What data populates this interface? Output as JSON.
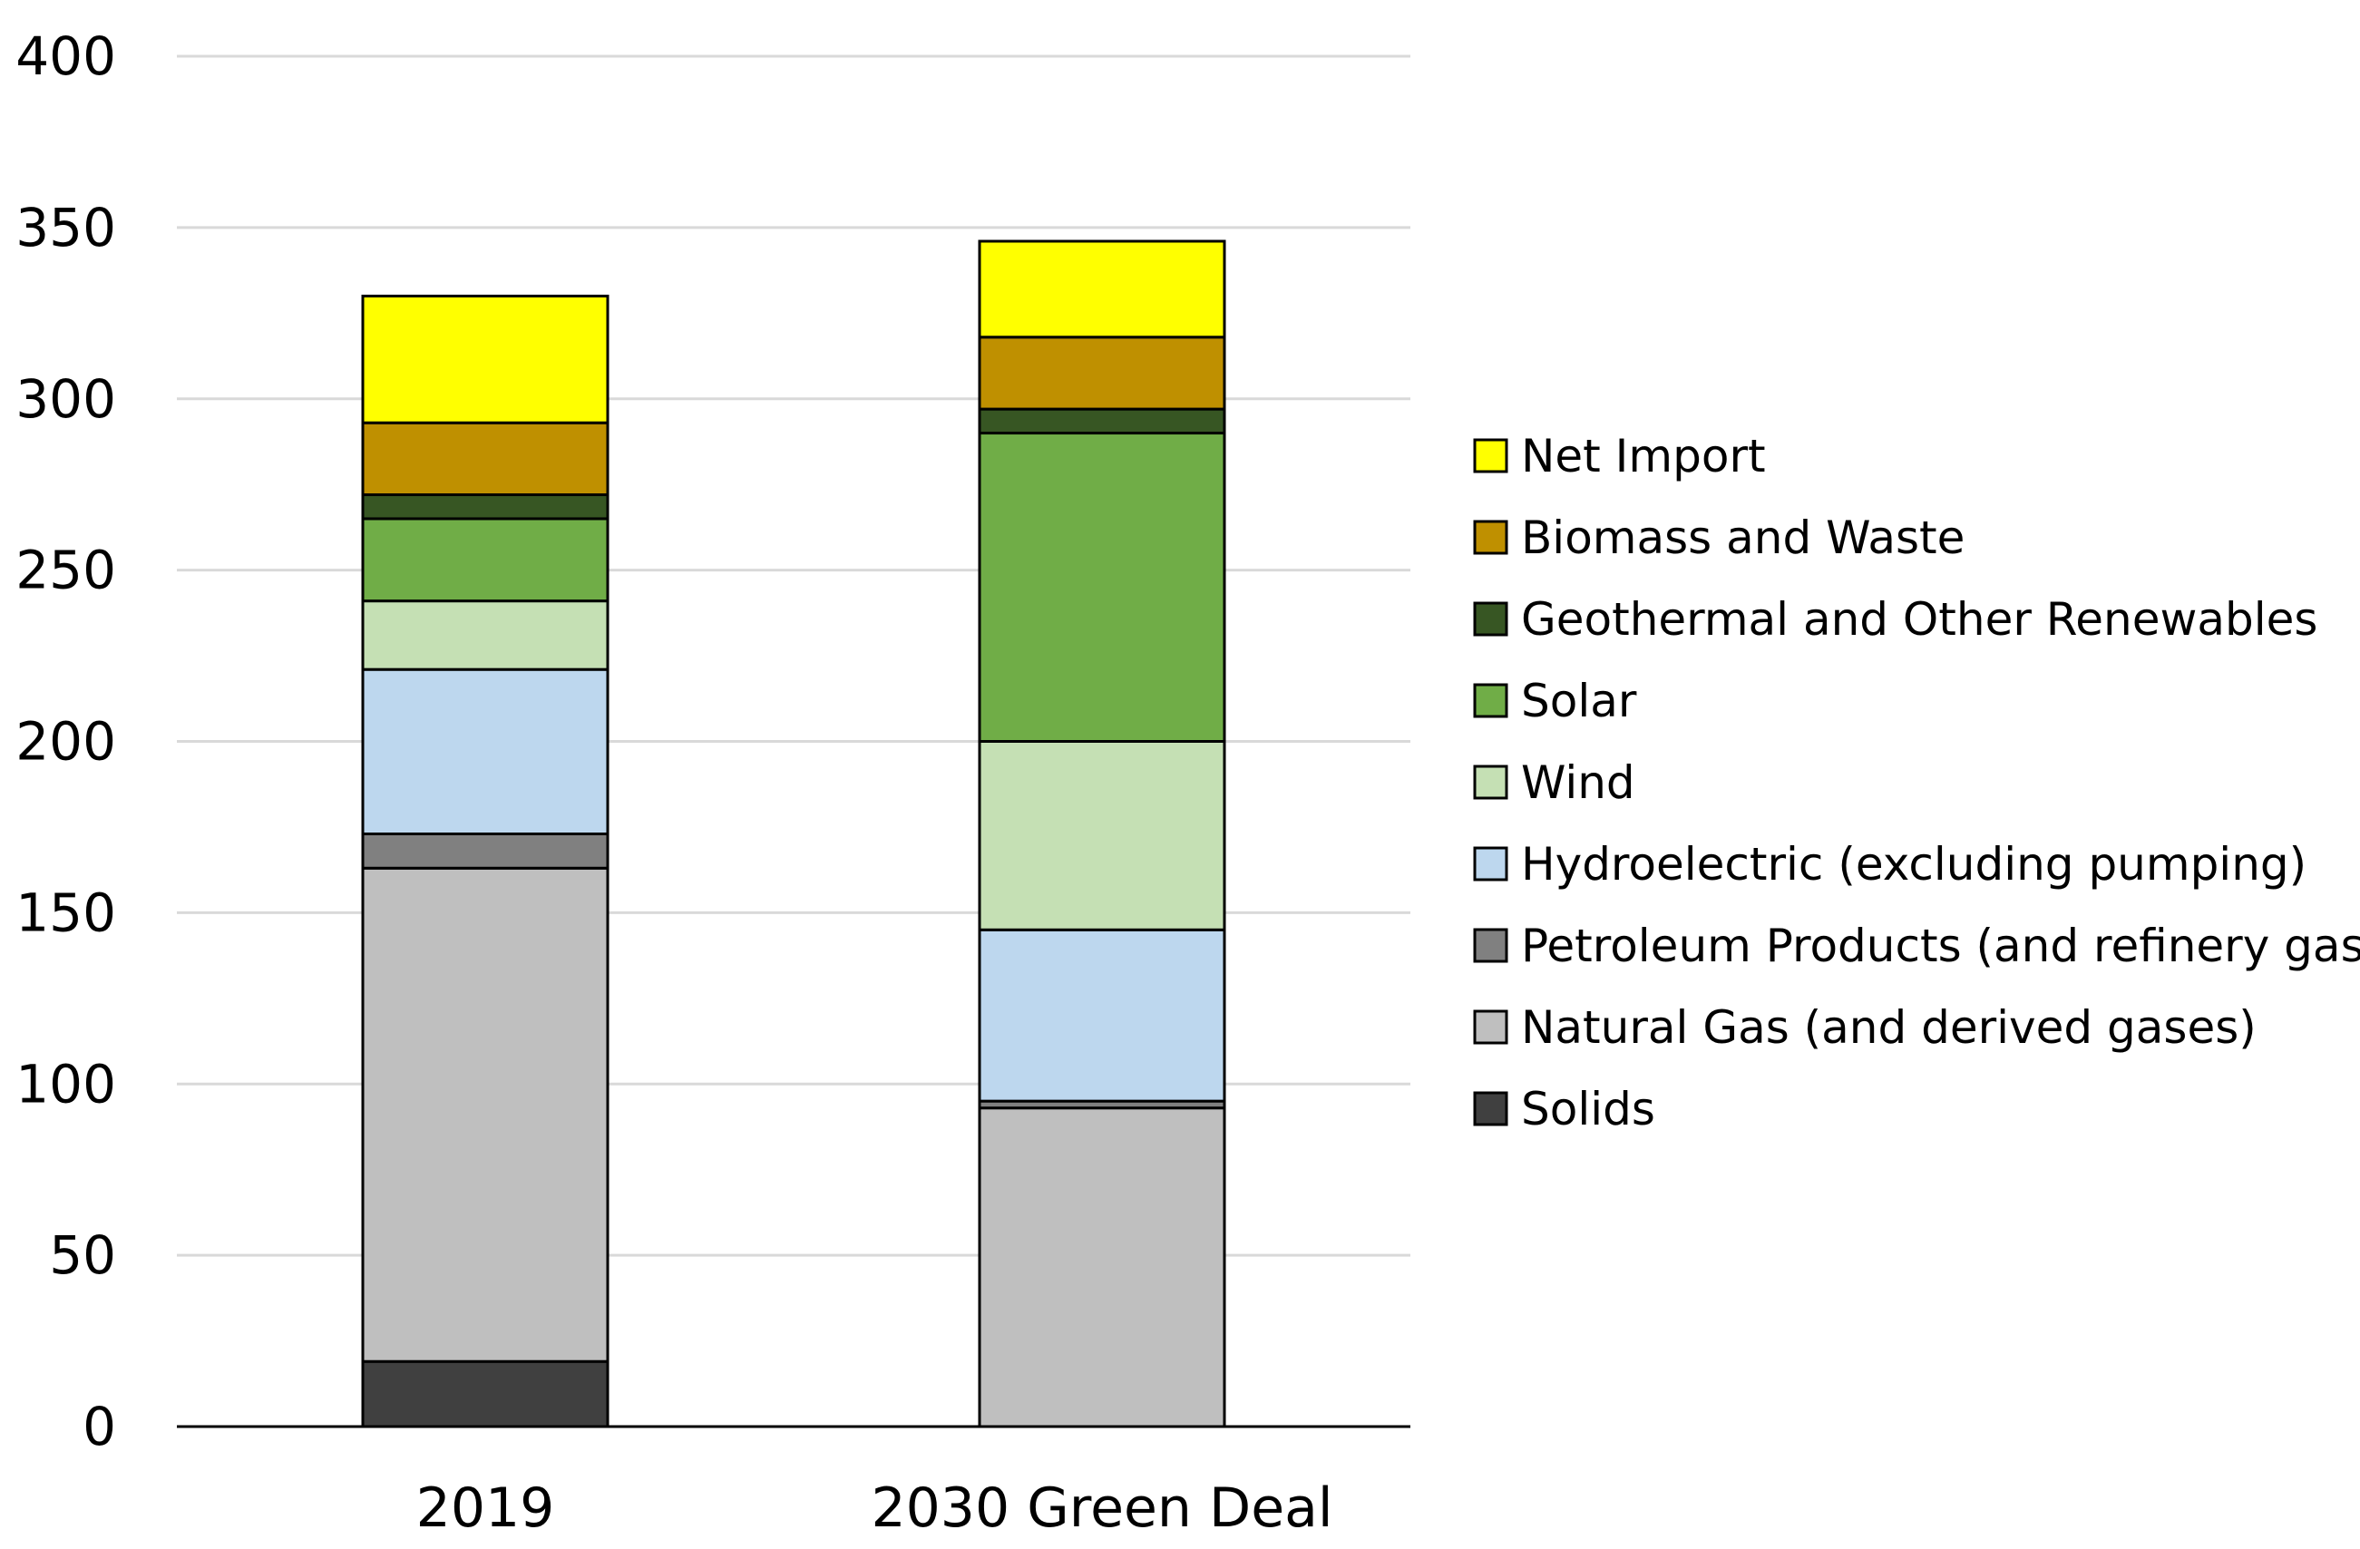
{
  "chart_data": {
    "type": "bar",
    "stacked": true,
    "title": "",
    "xlabel": "",
    "ylabel": "",
    "ylim": [
      0,
      400
    ],
    "yticks": [
      0,
      50,
      100,
      150,
      200,
      250,
      300,
      350,
      400
    ],
    "grid": true,
    "legend_position": "right",
    "categories": [
      "2019",
      "2030 Green Deal"
    ],
    "series": [
      {
        "name": "Solids",
        "color": "#404040",
        "values": [
          19,
          0
        ]
      },
      {
        "name": "Natural Gas (and derived gases)",
        "color": "#bfbfbf",
        "values": [
          144,
          93
        ]
      },
      {
        "name": "Petroleum Products (and refinery gas)",
        "color": "#808080",
        "values": [
          10,
          2
        ]
      },
      {
        "name": "Hydroelectric (excluding pumping)",
        "color": "#bdd7ee",
        "values": [
          48,
          50
        ]
      },
      {
        "name": "Wind",
        "color": "#c5e0b4",
        "values": [
          20,
          55
        ]
      },
      {
        "name": "Solar",
        "color": "#70ad47",
        "values": [
          24,
          90
        ]
      },
      {
        "name": "Geothermal and Other Renewables",
        "color": "#375623",
        "values": [
          7,
          7
        ]
      },
      {
        "name": "Biomass and Waste",
        "color": "#bf9000",
        "values": [
          21,
          21
        ]
      },
      {
        "name": "Net Import",
        "color": "#ffff00",
        "values": [
          37,
          28
        ]
      }
    ]
  }
}
